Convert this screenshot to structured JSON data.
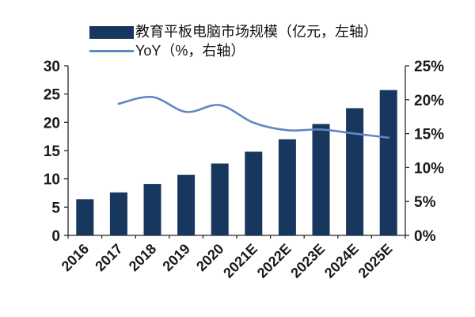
{
  "colors": {
    "bar": "#17375E",
    "line": "#6286C3",
    "axis": "#262626",
    "text": "#1A1A1A",
    "background": "#FFFFFF"
  },
  "legend": {
    "bar_label": "教育平板电脑市场规模（亿元，左轴）",
    "line_label": "YoY（%，右轴）"
  },
  "chart_data": {
    "type": "bar",
    "subtype": "bar-line-combo-dual-axis",
    "title": "",
    "categories": [
      "2016",
      "2017",
      "2018",
      "2019",
      "2020",
      "2021E",
      "2022E",
      "2023E",
      "2024E",
      "2025E"
    ],
    "series": [
      {
        "name": "教育平板电脑市场规模（亿元，左轴）",
        "type": "bar",
        "axis": "left",
        "color": "#17375E",
        "values": [
          6.4,
          7.6,
          9.1,
          10.7,
          12.7,
          14.8,
          17.0,
          19.7,
          22.5,
          25.7
        ]
      },
      {
        "name": "YoY（%，右轴）",
        "type": "line",
        "axis": "right",
        "color": "#6286C3",
        "values": [
          null,
          19.4,
          20.4,
          18.2,
          19.2,
          16.6,
          15.5,
          15.6,
          15.0,
          14.4
        ]
      }
    ],
    "left_axis": {
      "min": 0,
      "max": 30,
      "step": 5,
      "tick_labels": [
        "0",
        "5",
        "10",
        "15",
        "20",
        "25",
        "30"
      ]
    },
    "right_axis": {
      "min": 0,
      "max": 25,
      "step": 5,
      "tick_labels": [
        "0%",
        "5%",
        "10%",
        "15%",
        "20%",
        "25%"
      ]
    },
    "xlabel": "",
    "ylabel": "",
    "grid": false,
    "legend_position": "top-left",
    "x_tick_rotation_deg": -45
  }
}
